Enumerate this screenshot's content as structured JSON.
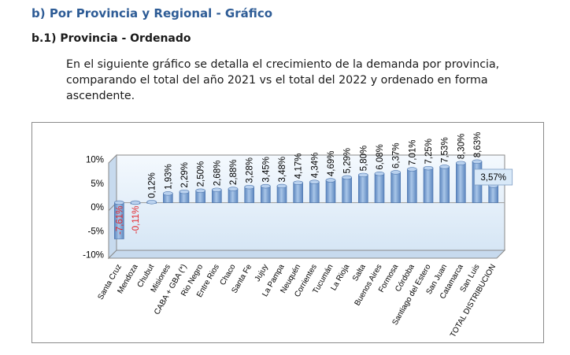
{
  "heading": {
    "section": "b) Por Provincia y Regional - Gráfico",
    "subsection": "b.1) Provincia - Ordenado"
  },
  "description": {
    "lines": [
      "En el siguiente gráfico se detalla el crecimiento de la demanda por provincia,",
      "comparando el total del año 2021 vs el total del 2022 y ordenado en forma",
      "ascendente."
    ]
  },
  "colors": {
    "heading": "#2E5C96",
    "bar": "#7FA6D6",
    "bar_dark": "#5B85BE",
    "plot_fill": "#D6E6F5",
    "negative_label": "#E3262B",
    "positive_label": "#000000",
    "total_box": "#D9E9F8"
  },
  "chart_data": {
    "type": "bar",
    "categories": [
      "Santa Cruz",
      "Mendoza",
      "Chubut",
      "Misiones",
      "CABA + GBA (*)",
      "Rio Negro",
      "Entre Rios",
      "Chaco",
      "Santa Fe",
      "Jujuy",
      "La Pampa",
      "Neuquén",
      "Corrientes",
      "Tucumán",
      "La Rioja",
      "Salta",
      "Buenos Aires",
      "Formosa",
      "Córdoba",
      "Santiago del Estero",
      "San Juan",
      "Catamarca",
      "San Luis",
      "TOTAL DISTRIBUCION"
    ],
    "values": [
      -7.61,
      -0.11,
      0.12,
      1.93,
      2.29,
      2.5,
      2.68,
      2.88,
      3.28,
      3.45,
      3.48,
      4.17,
      4.34,
      4.69,
      5.29,
      5.8,
      6.08,
      6.37,
      7.01,
      7.25,
      7.53,
      8.3,
      8.63,
      3.57
    ],
    "data_labels": [
      "-7,61%",
      "-0,11%",
      "0,12%",
      "1,93%",
      "2,29%",
      "2,50%",
      "2,68%",
      "2,88%",
      "3,28%",
      "3,45%",
      "3,48%",
      "4,17%",
      "4,34%",
      "4,69%",
      "5,29%",
      "5,80%",
      "6,08%",
      "6,37%",
      "7,01%",
      "7,25%",
      "7,53%",
      "8,30%",
      "8,63%",
      "3,57%"
    ],
    "ylim": [
      -10,
      10
    ],
    "y_ticks": [
      -10,
      -5,
      0,
      5,
      10
    ],
    "y_tick_labels": [
      "-10%",
      "-5%",
      "0%",
      "5%",
      "10%"
    ],
    "grid": false,
    "title": "",
    "xlabel": "",
    "ylabel": ""
  }
}
